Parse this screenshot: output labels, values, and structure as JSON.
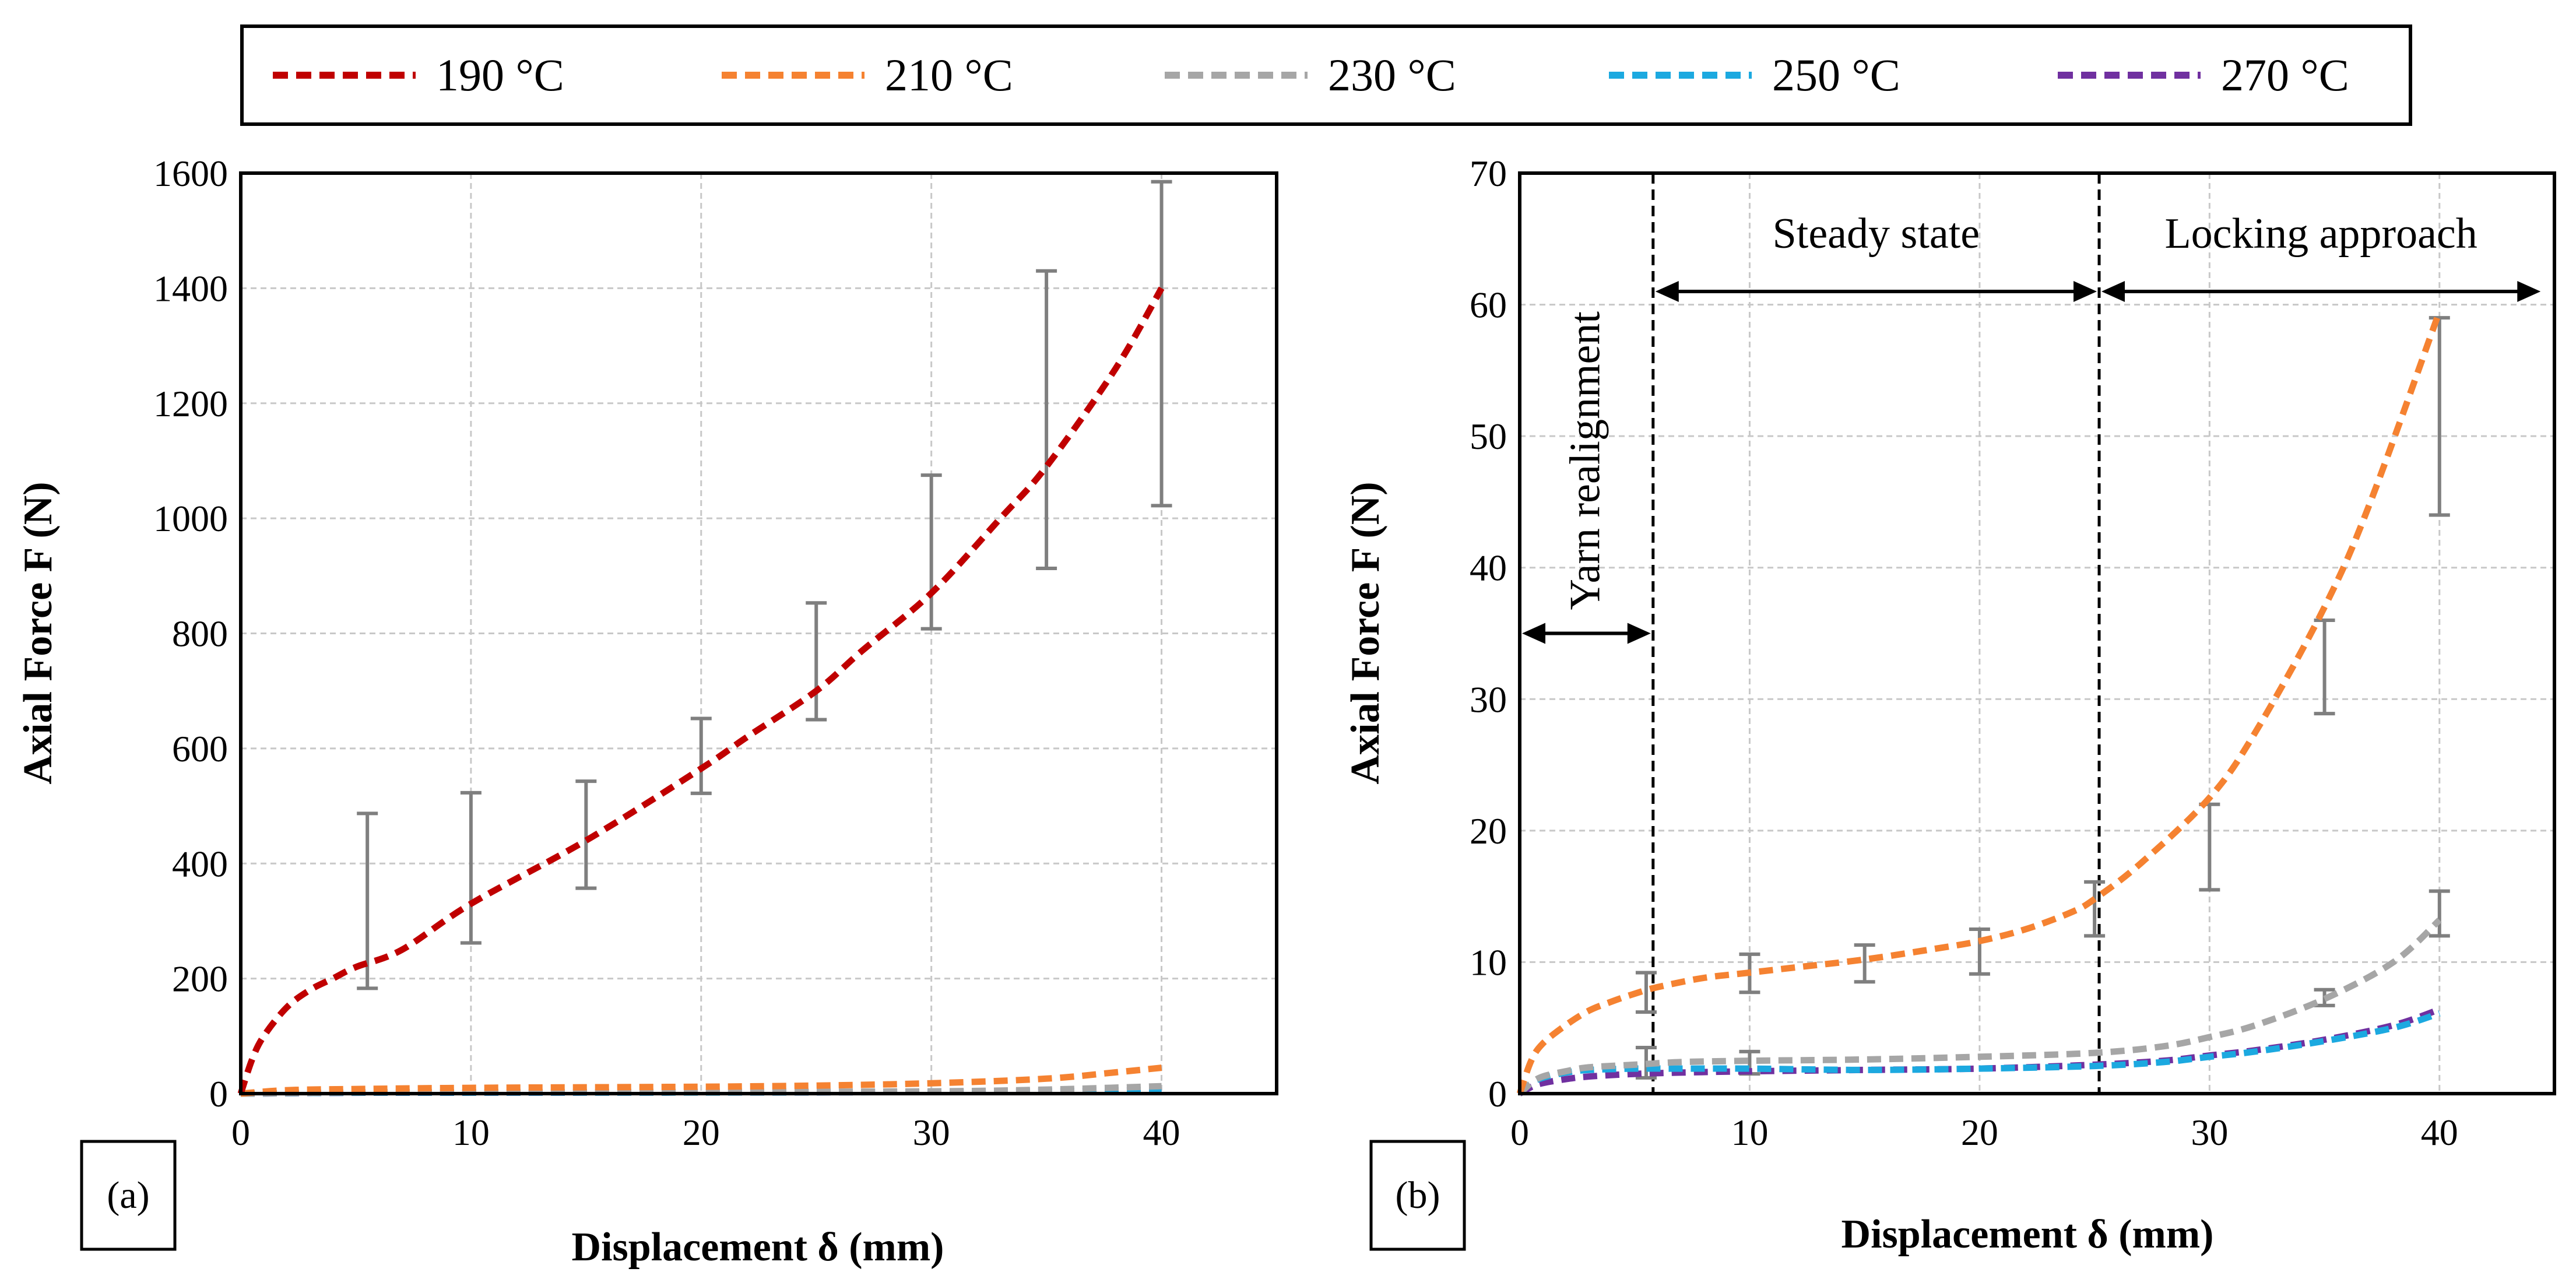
{
  "legend": {
    "entries": [
      {
        "label": "190 °C",
        "color": "#C00000"
      },
      {
        "label": "210 °C",
        "color": "#F58231"
      },
      {
        "label": "230 °C",
        "color": "#A6A6A6"
      },
      {
        "label": "250 °C",
        "color": "#1CA9E0"
      },
      {
        "label": "270 °C",
        "color": "#7030A0"
      }
    ]
  },
  "chart_data": [
    {
      "type": "line",
      "panel": "(a)",
      "title": "",
      "xlabel": "Displacement δ (mm)",
      "ylabel": "Axial Force F (N)",
      "xlim": [
        0,
        45
      ],
      "ylim": [
        0,
        1600
      ],
      "xticks": [
        0,
        10,
        20,
        30,
        40
      ],
      "yticks": [
        0,
        200,
        400,
        600,
        800,
        1000,
        1200,
        1400,
        1600
      ],
      "grid": true,
      "series": [
        {
          "name": "190 °C",
          "x": [
            0,
            0.5,
            1,
            2,
            3,
            4,
            5,
            7,
            10,
            15,
            20,
            22,
            25,
            27,
            30,
            33,
            35,
            38,
            40
          ],
          "y": [
            0,
            60,
            100,
            150,
            180,
            200,
            220,
            250,
            330,
            440,
            565,
            620,
            700,
            770,
            870,
            1000,
            1090,
            1260,
            1400
          ]
        },
        {
          "name": "210 °C",
          "x": [
            0,
            2,
            5,
            10,
            15,
            20,
            25,
            30,
            35,
            38,
            40
          ],
          "y": [
            0,
            6,
            8,
            10,
            11,
            12,
            14,
            18,
            26,
            37,
            45
          ]
        },
        {
          "name": "230 °C",
          "x": [
            0,
            5,
            10,
            20,
            30,
            35,
            40
          ],
          "y": [
            0,
            2,
            2.5,
            3,
            4,
            7,
            13
          ]
        },
        {
          "name": "250 °C",
          "x": [
            0,
            5,
            10,
            20,
            30,
            35,
            40
          ],
          "y": [
            0,
            1.5,
            1.8,
            2,
            2.8,
            4,
            6
          ]
        },
        {
          "name": "270 °C",
          "x": [
            0,
            5,
            10,
            20,
            30,
            35,
            40
          ],
          "y": [
            0,
            1.4,
            1.7,
            2,
            2.8,
            4,
            6.5
          ]
        }
      ],
      "error_bars": [
        {
          "x": 5.5,
          "low": 183,
          "high": 487
        },
        {
          "x": 10,
          "low": 262,
          "high": 523
        },
        {
          "x": 15,
          "low": 357,
          "high": 543
        },
        {
          "x": 20,
          "low": 522,
          "high": 652
        },
        {
          "x": 25,
          "low": 650,
          "high": 853
        },
        {
          "x": 30,
          "low": 808,
          "high": 1075
        },
        {
          "x": 35,
          "low": 913,
          "high": 1430
        },
        {
          "x": 40,
          "low": 1022,
          "high": 1585
        }
      ]
    },
    {
      "type": "line",
      "panel": "(b)",
      "title": "",
      "xlabel": "Displacement δ (mm)",
      "ylabel": "Axial Force F (N)",
      "xlim": [
        0,
        45
      ],
      "ylim": [
        0,
        70
      ],
      "xticks": [
        0,
        10,
        20,
        30,
        40
      ],
      "yticks": [
        0,
        10,
        20,
        30,
        40,
        50,
        60,
        70
      ],
      "grid": true,
      "series": [
        {
          "name": "210 °C",
          "x": [
            0,
            0.5,
            1,
            2,
            3,
            4,
            5,
            6,
            8,
            10,
            12,
            15,
            18,
            20,
            22,
            24,
            25,
            27,
            30,
            32,
            35,
            37,
            40
          ],
          "y": [
            0,
            2.5,
            3.8,
            5.2,
            6.3,
            7.0,
            7.6,
            8.1,
            8.8,
            9.2,
            9.6,
            10.2,
            11.0,
            11.6,
            12.5,
            13.8,
            14.8,
            17.5,
            22.5,
            27.5,
            37.0,
            45.0,
            59.5
          ]
        },
        {
          "name": "230 °C",
          "x": [
            0,
            0.5,
            1,
            2,
            3,
            5,
            7,
            10,
            15,
            20,
            25,
            28,
            30,
            32,
            35,
            38,
            40
          ],
          "y": [
            0,
            0.8,
            1.3,
            1.7,
            2.0,
            2.2,
            2.4,
            2.5,
            2.6,
            2.8,
            3.1,
            3.6,
            4.3,
            5.2,
            7.2,
            10.0,
            13.2
          ]
        },
        {
          "name": "250 °C",
          "x": [
            0,
            0.5,
            1,
            2,
            3,
            5,
            7,
            10,
            15,
            20,
            25,
            28,
            30,
            32,
            35,
            38,
            40
          ],
          "y": [
            0,
            0.8,
            1.2,
            1.6,
            1.8,
            1.9,
            1.9,
            1.9,
            1.8,
            1.9,
            2.1,
            2.4,
            2.8,
            3.2,
            4.0,
            5.0,
            6.1
          ]
        },
        {
          "name": "270 °C",
          "x": [
            0,
            0.5,
            1,
            2,
            3,
            5,
            7,
            10,
            15,
            20,
            25,
            28,
            30,
            32,
            35,
            38,
            40
          ],
          "y": [
            0,
            0.5,
            0.8,
            1.1,
            1.3,
            1.5,
            1.6,
            1.7,
            1.8,
            1.9,
            2.2,
            2.5,
            2.9,
            3.3,
            4.1,
            5.2,
            6.4
          ]
        }
      ],
      "error_bars": [
        {
          "x": 5.5,
          "low": 6.2,
          "high": 9.2
        },
        {
          "x": 5.5,
          "low": 1.2,
          "high": 3.5
        },
        {
          "x": 10,
          "low": 7.7,
          "high": 10.6
        },
        {
          "x": 10,
          "low": 1.5,
          "high": 3.2
        },
        {
          "x": 15,
          "low": 8.5,
          "high": 11.3
        },
        {
          "x": 20,
          "low": 9.1,
          "high": 12.5
        },
        {
          "x": 25,
          "low": 12.0,
          "high": 16.1
        },
        {
          "x": 30,
          "low": 15.5,
          "high": 22.0
        },
        {
          "x": 35,
          "low": 28.9,
          "high": 36.0
        },
        {
          "x": 35,
          "low": 6.7,
          "high": 7.9
        },
        {
          "x": 40,
          "low": 44.0,
          "high": 59.0
        },
        {
          "x": 40,
          "low": 12.0,
          "high": 15.4
        }
      ],
      "annotations": {
        "dividers_x": [
          5.8,
          25.2
        ],
        "regions": [
          {
            "label": "Yarn realignment",
            "x0": 0,
            "x1": 5.8,
            "y": 35,
            "orientation": "vertical"
          },
          {
            "label": "Steady state",
            "x0": 5.8,
            "x1": 25.2,
            "y": 61
          },
          {
            "label": "Locking approach",
            "x0": 25.2,
            "x1": 44.5,
            "y": 61
          }
        ]
      }
    }
  ]
}
